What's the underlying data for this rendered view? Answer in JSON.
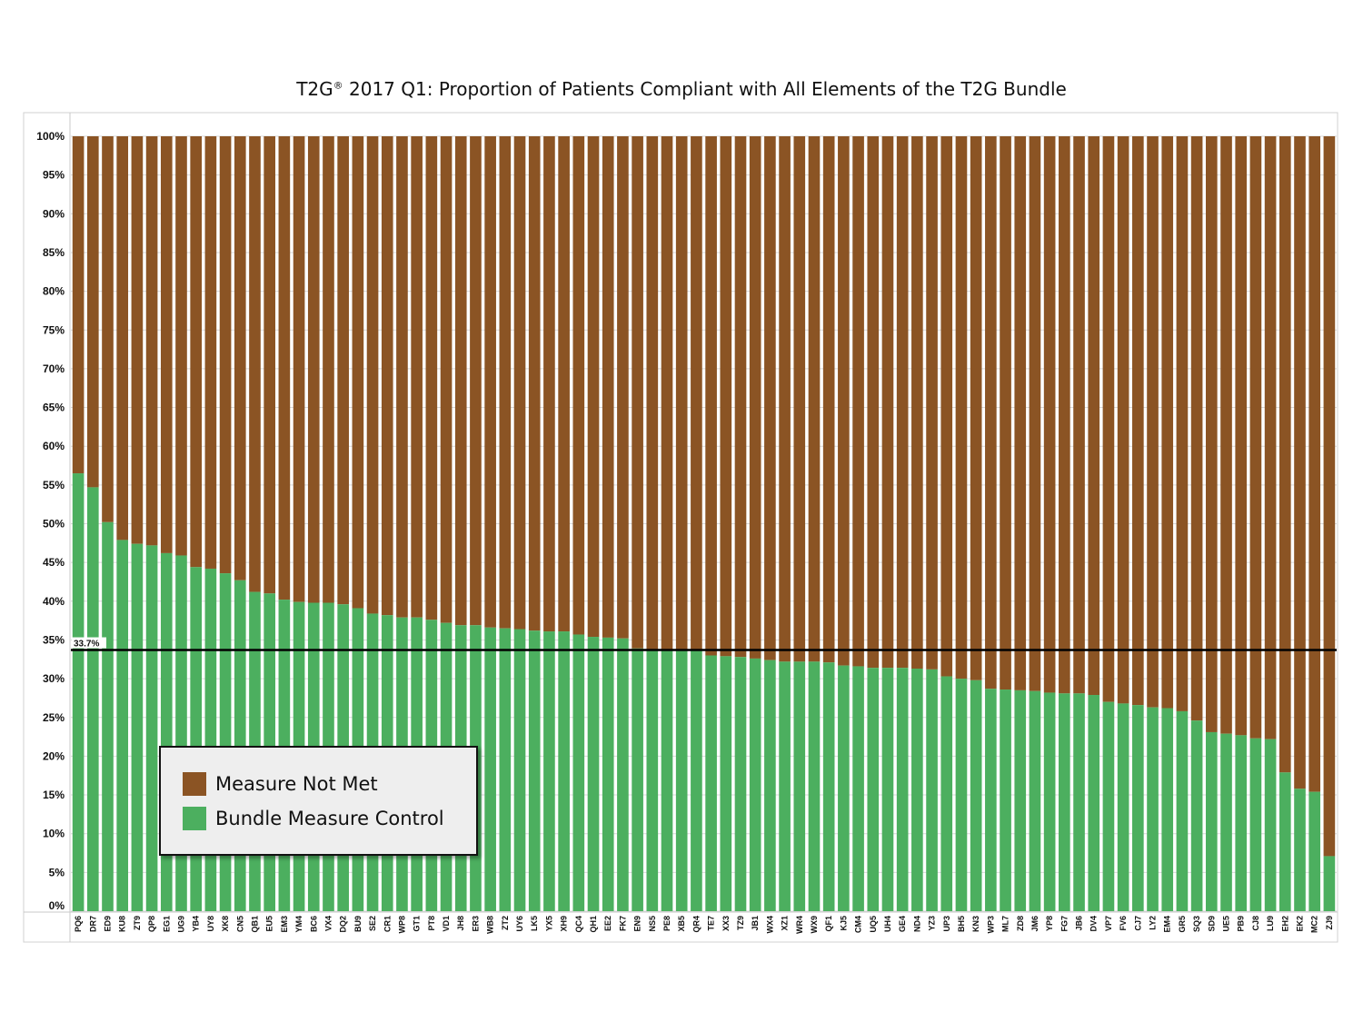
{
  "chart_data": {
    "type": "bar",
    "stacked": true,
    "title": "2017 Q1: Proportion of Patients Compliant with All Elements of the T2G Bundle",
    "title_brand": "T2G",
    "title_mark": "®",
    "ylim": [
      0,
      100
    ],
    "y_ticks": [
      "0%",
      "5%",
      "10%",
      "15%",
      "20%",
      "25%",
      "30%",
      "35%",
      "40%",
      "45%",
      "50%",
      "55%",
      "60%",
      "65%",
      "70%",
      "75%",
      "80%",
      "85%",
      "90%",
      "95%",
      "100%"
    ],
    "grid": true,
    "reference_line": {
      "value": 33.7,
      "label": "33.7%"
    },
    "legend_position": "bottom-left",
    "categories": [
      "PQ6",
      "DR7",
      "ED9",
      "KU8",
      "ZT9",
      "QP8",
      "EG1",
      "UG9",
      "YB4",
      "UY8",
      "XK8",
      "CN5",
      "QB1",
      "EU5",
      "EM3",
      "YM4",
      "BC6",
      "VX4",
      "DQ2",
      "BU9",
      "SE2",
      "CR1",
      "WP8",
      "GT1",
      "PT8",
      "VD1",
      "JH8",
      "ER3",
      "WB8",
      "ZT2",
      "UY6",
      "LK5",
      "YX5",
      "XH9",
      "QC4",
      "QH1",
      "EE2",
      "FK7",
      "EN9",
      "NS5",
      "PE8",
      "XB5",
      "QR4",
      "TE7",
      "XX3",
      "TZ9",
      "JB1",
      "WX4",
      "XZ1",
      "WR4",
      "WX9",
      "QF1",
      "KJ5",
      "CM4",
      "UQ5",
      "UH4",
      "GE4",
      "ND4",
      "YZ3",
      "UP3",
      "BH5",
      "KN3",
      "WP3",
      "ML7",
      "ZD8",
      "JM6",
      "YP8",
      "FG7",
      "JB6",
      "DV4",
      "VP7",
      "FV6",
      "CJ7",
      "LY2",
      "EM4",
      "GR5",
      "SQ3",
      "SD9",
      "UE5",
      "PB9",
      "CJ8",
      "LU9",
      "EH2",
      "EK2",
      "MC2",
      "ZJ9"
    ],
    "series": [
      {
        "name": "Bundle Measure Control",
        "color": "#4caf5f",
        "values": [
          56.5,
          54.7,
          50.2,
          47.9,
          47.4,
          47.2,
          46.2,
          45.9,
          44.4,
          44.2,
          43.6,
          42.7,
          41.2,
          41.0,
          40.2,
          39.9,
          39.8,
          39.8,
          39.6,
          39.1,
          38.4,
          38.2,
          37.9,
          37.9,
          37.6,
          37.2,
          36.9,
          36.9,
          36.6,
          36.5,
          36.4,
          36.2,
          36.1,
          36.1,
          35.7,
          35.4,
          35.3,
          35.2,
          33.9,
          33.8,
          33.7,
          33.7,
          33.6,
          33.0,
          32.9,
          32.8,
          32.6,
          32.4,
          32.2,
          32.2,
          32.2,
          32.1,
          31.7,
          31.6,
          31.4,
          31.4,
          31.4,
          31.3,
          31.2,
          30.3,
          30.0,
          29.8,
          28.7,
          28.6,
          28.5,
          28.4,
          28.2,
          28.1,
          28.1,
          27.9,
          27.0,
          26.8,
          26.6,
          26.3,
          26.2,
          25.8,
          24.6,
          23.1,
          22.9,
          22.7,
          22.3,
          22.2,
          17.9,
          15.8,
          15.4,
          7.1
        ]
      },
      {
        "name": "Measure Not Met",
        "color": "#8b5424"
      }
    ]
  },
  "legend": {
    "items": [
      {
        "label": "Measure Not Met",
        "color": "#8b5424"
      },
      {
        "label": "Bundle Measure Control",
        "color": "#4caf5f"
      }
    ]
  }
}
